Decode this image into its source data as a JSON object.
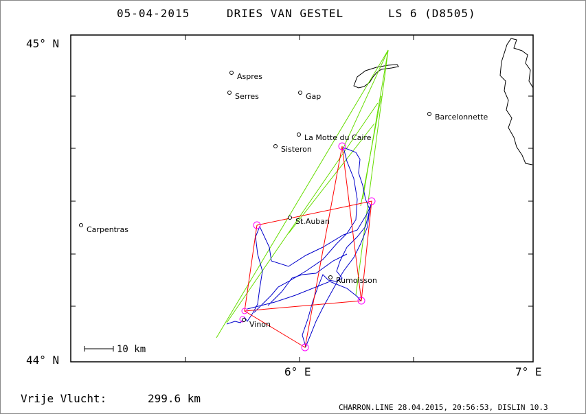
{
  "header": {
    "date": "05-04-2015",
    "pilot": "DRIES VAN GESTEL",
    "glider": "LS 6 (D8505)"
  },
  "axes": {
    "lat_top": "45° N",
    "lat_bottom": "44° N",
    "lon_mid": "6° E",
    "lon_right": "7° E"
  },
  "scale_bar": {
    "label": "10 km"
  },
  "flight": {
    "label": "Vrije Vlucht:",
    "distance": "299.6 km"
  },
  "footer": {
    "text": "CHARRON.LINE 28.04.2015, 20:56:53, DISLIN 10.3"
  },
  "places": [
    {
      "name": "Aspres",
      "lon": 5.7,
      "lat": 44.91
    },
    {
      "name": "Serres",
      "lon": 5.69,
      "lat": 44.82
    },
    {
      "name": "Gap",
      "lon": 6.0,
      "lat": 44.82
    },
    {
      "name": "Barcelonnette",
      "lon": 6.56,
      "lat": 44.73
    },
    {
      "name": "La Motte du Caire",
      "lon": 5.99,
      "lat": 44.65
    },
    {
      "name": "Sisteron",
      "lon": 5.89,
      "lat": 44.6
    },
    {
      "name": "St.Auban",
      "lon": 5.95,
      "lat": 44.4
    },
    {
      "name": "Carpentras",
      "lon": 5.04,
      "lat": 44.38
    },
    {
      "name": "Rumoisson",
      "lon": 6.13,
      "lat": 44.25
    },
    {
      "name": "Vinon",
      "lon": 5.75,
      "lat": 44.11
    }
  ],
  "turnpoints": [
    {
      "lon": 5.81,
      "lat": 44.38
    },
    {
      "lon": 6.32,
      "lat": 44.45
    },
    {
      "lon": 6.27,
      "lat": 44.18
    },
    {
      "lon": 5.76,
      "lat": 44.15
    },
    {
      "lon": 6.19,
      "lat": 44.63
    },
    {
      "lon": 6.02,
      "lat": 44.04
    }
  ],
  "colors": {
    "task": "#ff0000",
    "track": "#0000cc",
    "sector": "#66dd00",
    "turnpoint": "#ff00ff",
    "frame": "#000000"
  }
}
